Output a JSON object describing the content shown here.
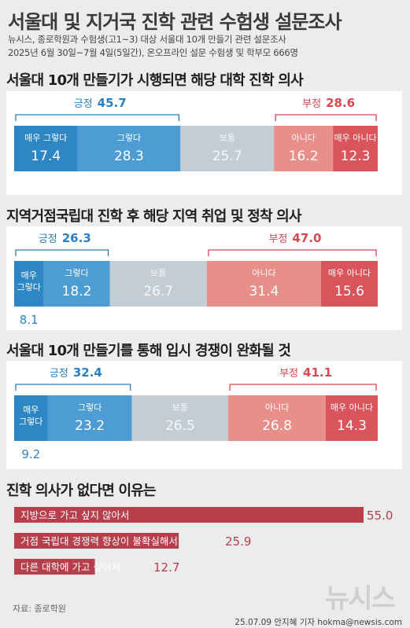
{
  "header": {
    "title": "서울대 및 지거국 진학 관련 수험생 설문조사",
    "line1": "뉴시스, 종로학원과 수험생(고1~3) 대상 서울대 10개 만들기 관련 설문조사",
    "line2": "2025년 6월 30일~7월 4일(5일간), 온오프라인 설문 수험생 및 학부모 666명"
  },
  "chart_data": [
    {
      "type": "bar",
      "stacked": true,
      "title": "서울대 10개 만들기가 시행되면 해당 대학 진학 의사",
      "categories": [
        "매우 그렇다",
        "그렇다",
        "보통",
        "아니다",
        "매우 아니다"
      ],
      "values": [
        17.4,
        28.3,
        25.7,
        16.2,
        12.3
      ],
      "positive": {
        "label": "긍정",
        "value": "45.7"
      },
      "negative": {
        "label": "부정",
        "value": "28.6"
      }
    },
    {
      "type": "bar",
      "stacked": true,
      "title": "지역거점국립대 진학 후 해당 지역 취업 및 정착 의사",
      "categories": [
        "매우 그렇다",
        "그렇다",
        "보통",
        "아니다",
        "매우 아니다"
      ],
      "values": [
        8.1,
        18.2,
        26.7,
        31.4,
        15.6
      ],
      "positive": {
        "label": "긍정",
        "value": "26.3"
      },
      "negative": {
        "label": "부정",
        "value": "47.0"
      }
    },
    {
      "type": "bar",
      "stacked": true,
      "title": "서울대 10개 만들기를 통해 입시 경쟁이 완화될 것",
      "categories": [
        "매우 그렇다",
        "그렇다",
        "보통",
        "아니다",
        "매우 아니다"
      ],
      "values": [
        9.2,
        23.2,
        26.5,
        26.8,
        14.3
      ],
      "positive": {
        "label": "긍정",
        "value": "32.4"
      },
      "negative": {
        "label": "부정",
        "value": "41.1"
      }
    },
    {
      "type": "bar",
      "orientation": "horizontal",
      "title": "진학 의사가 없다면 이유는",
      "categories": [
        "지방으로 가고 싶지 않아서",
        "거점 국립대 경쟁력 향상이 불확실해서",
        "다른 대학에 가고 싶어서"
      ],
      "values": [
        55.0,
        25.9,
        12.7
      ],
      "value_labels": [
        "55.0",
        "25.9",
        "12.7"
      ]
    }
  ],
  "labels": {
    "very_yes_wrap": [
      "매우",
      "그렇다"
    ],
    "very_no_wrap": [
      "매우",
      "아니다"
    ]
  },
  "colors": {
    "very_yes": "#2f86c4",
    "yes": "#4d9cd3",
    "neutral": "#c4ccd4",
    "no": "#e88f8a",
    "very_no": "#d9555b",
    "positive_text": "#2a7fc0",
    "negative_text": "#d9474f",
    "reason_bar": "#b73f4c"
  },
  "footer": {
    "source": "자료: 종로학원",
    "credit": "25.07.09 안지혜 기자 hokma@newsis.com",
    "logo": "뉴시스"
  }
}
